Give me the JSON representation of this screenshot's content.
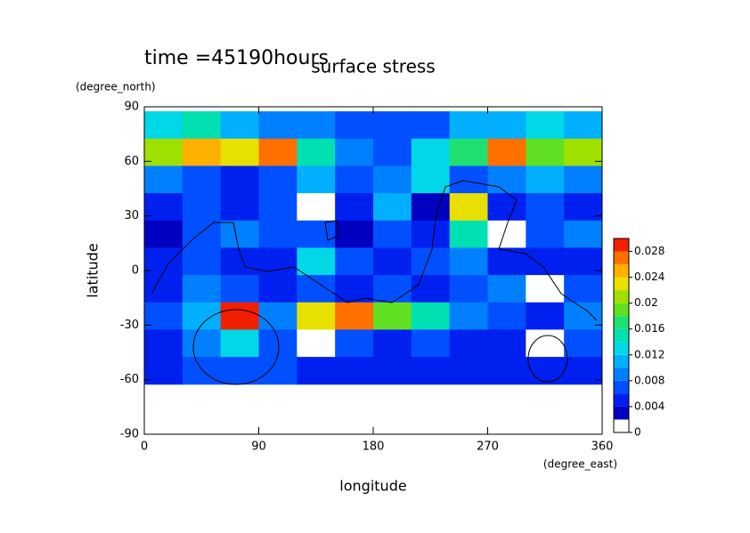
{
  "chart_data": {
    "type": "heatmap",
    "title": "surface stress",
    "subtitle": "time =45190hours",
    "x_label": "longitude",
    "x_unit": "(degree_east)",
    "y_label": "latitude",
    "y_unit": "(degree_north)",
    "x": [
      15,
      45,
      75,
      105,
      135,
      165,
      195,
      225,
      255,
      285,
      315,
      345
    ],
    "y": [
      80,
      65,
      50,
      35,
      20,
      5,
      -10,
      -25,
      -40,
      -55
    ],
    "values": [
      [
        0.012,
        0.014,
        0.01,
        0.008,
        0.008,
        0.006,
        0.006,
        0.006,
        0.01,
        0.01,
        0.012,
        0.01
      ],
      [
        0.02,
        0.024,
        0.022,
        0.026,
        0.014,
        0.008,
        0.006,
        0.012,
        0.016,
        0.026,
        0.018,
        0.02
      ],
      [
        0.008,
        0.006,
        0.004,
        0.006,
        0.01,
        0.006,
        0.008,
        0.012,
        0.006,
        0.008,
        0.01,
        0.008
      ],
      [
        0.004,
        0.006,
        0.004,
        0.006,
        0.001,
        0.004,
        0.01,
        0.002,
        0.022,
        0.004,
        0.006,
        0.004
      ],
      [
        0.002,
        0.006,
        0.008,
        0.006,
        0.006,
        0.003,
        0.006,
        0.004,
        0.014,
        0.001,
        0.006,
        0.008
      ],
      [
        0.004,
        0.006,
        0.004,
        0.004,
        0.012,
        0.006,
        0.004,
        0.006,
        0.008,
        0.004,
        0.004,
        0.004
      ],
      [
        0.004,
        0.008,
        0.006,
        0.004,
        0.006,
        0.004,
        0.006,
        0.004,
        0.006,
        0.008,
        0.001,
        0.006
      ],
      [
        0.006,
        0.01,
        0.028,
        0.008,
        0.022,
        0.026,
        0.018,
        0.014,
        0.008,
        0.006,
        0.004,
        0.008
      ],
      [
        0.004,
        0.008,
        0.012,
        0.006,
        0.001,
        0.006,
        0.004,
        0.006,
        0.004,
        0.004,
        0.001,
        0.006
      ],
      [
        0.004,
        0.006,
        0.006,
        0.006,
        0.004,
        0.004,
        0.004,
        0.004,
        0.004,
        0.004,
        0.004,
        0.004
      ]
    ],
    "xlim": [
      0,
      360
    ],
    "xticks": [
      0,
      90,
      180,
      270,
      360
    ],
    "ylim": [
      -90,
      90
    ],
    "yticks": [
      -90,
      -60,
      -30,
      0,
      30,
      60,
      90
    ],
    "levels": [
      0,
      0.002,
      0.004,
      0.006,
      0.008,
      0.01,
      0.012,
      0.014,
      0.016,
      0.018,
      0.02,
      0.022,
      0.024,
      0.026,
      0.028,
      0.03
    ],
    "colors": [
      "#ffffff",
      "#0000c0",
      "#0020f0",
      "#0050ff",
      "#0080ff",
      "#00b0ff",
      "#00d8e8",
      "#00e0b0",
      "#20e070",
      "#60e020",
      "#a0e000",
      "#e8e000",
      "#ffb000",
      "#ff7000",
      "#f02000"
    ],
    "colorbar_ticks": [
      0,
      0.004,
      0.008,
      0.012,
      0.016,
      0.02,
      0.024,
      0.028
    ]
  }
}
